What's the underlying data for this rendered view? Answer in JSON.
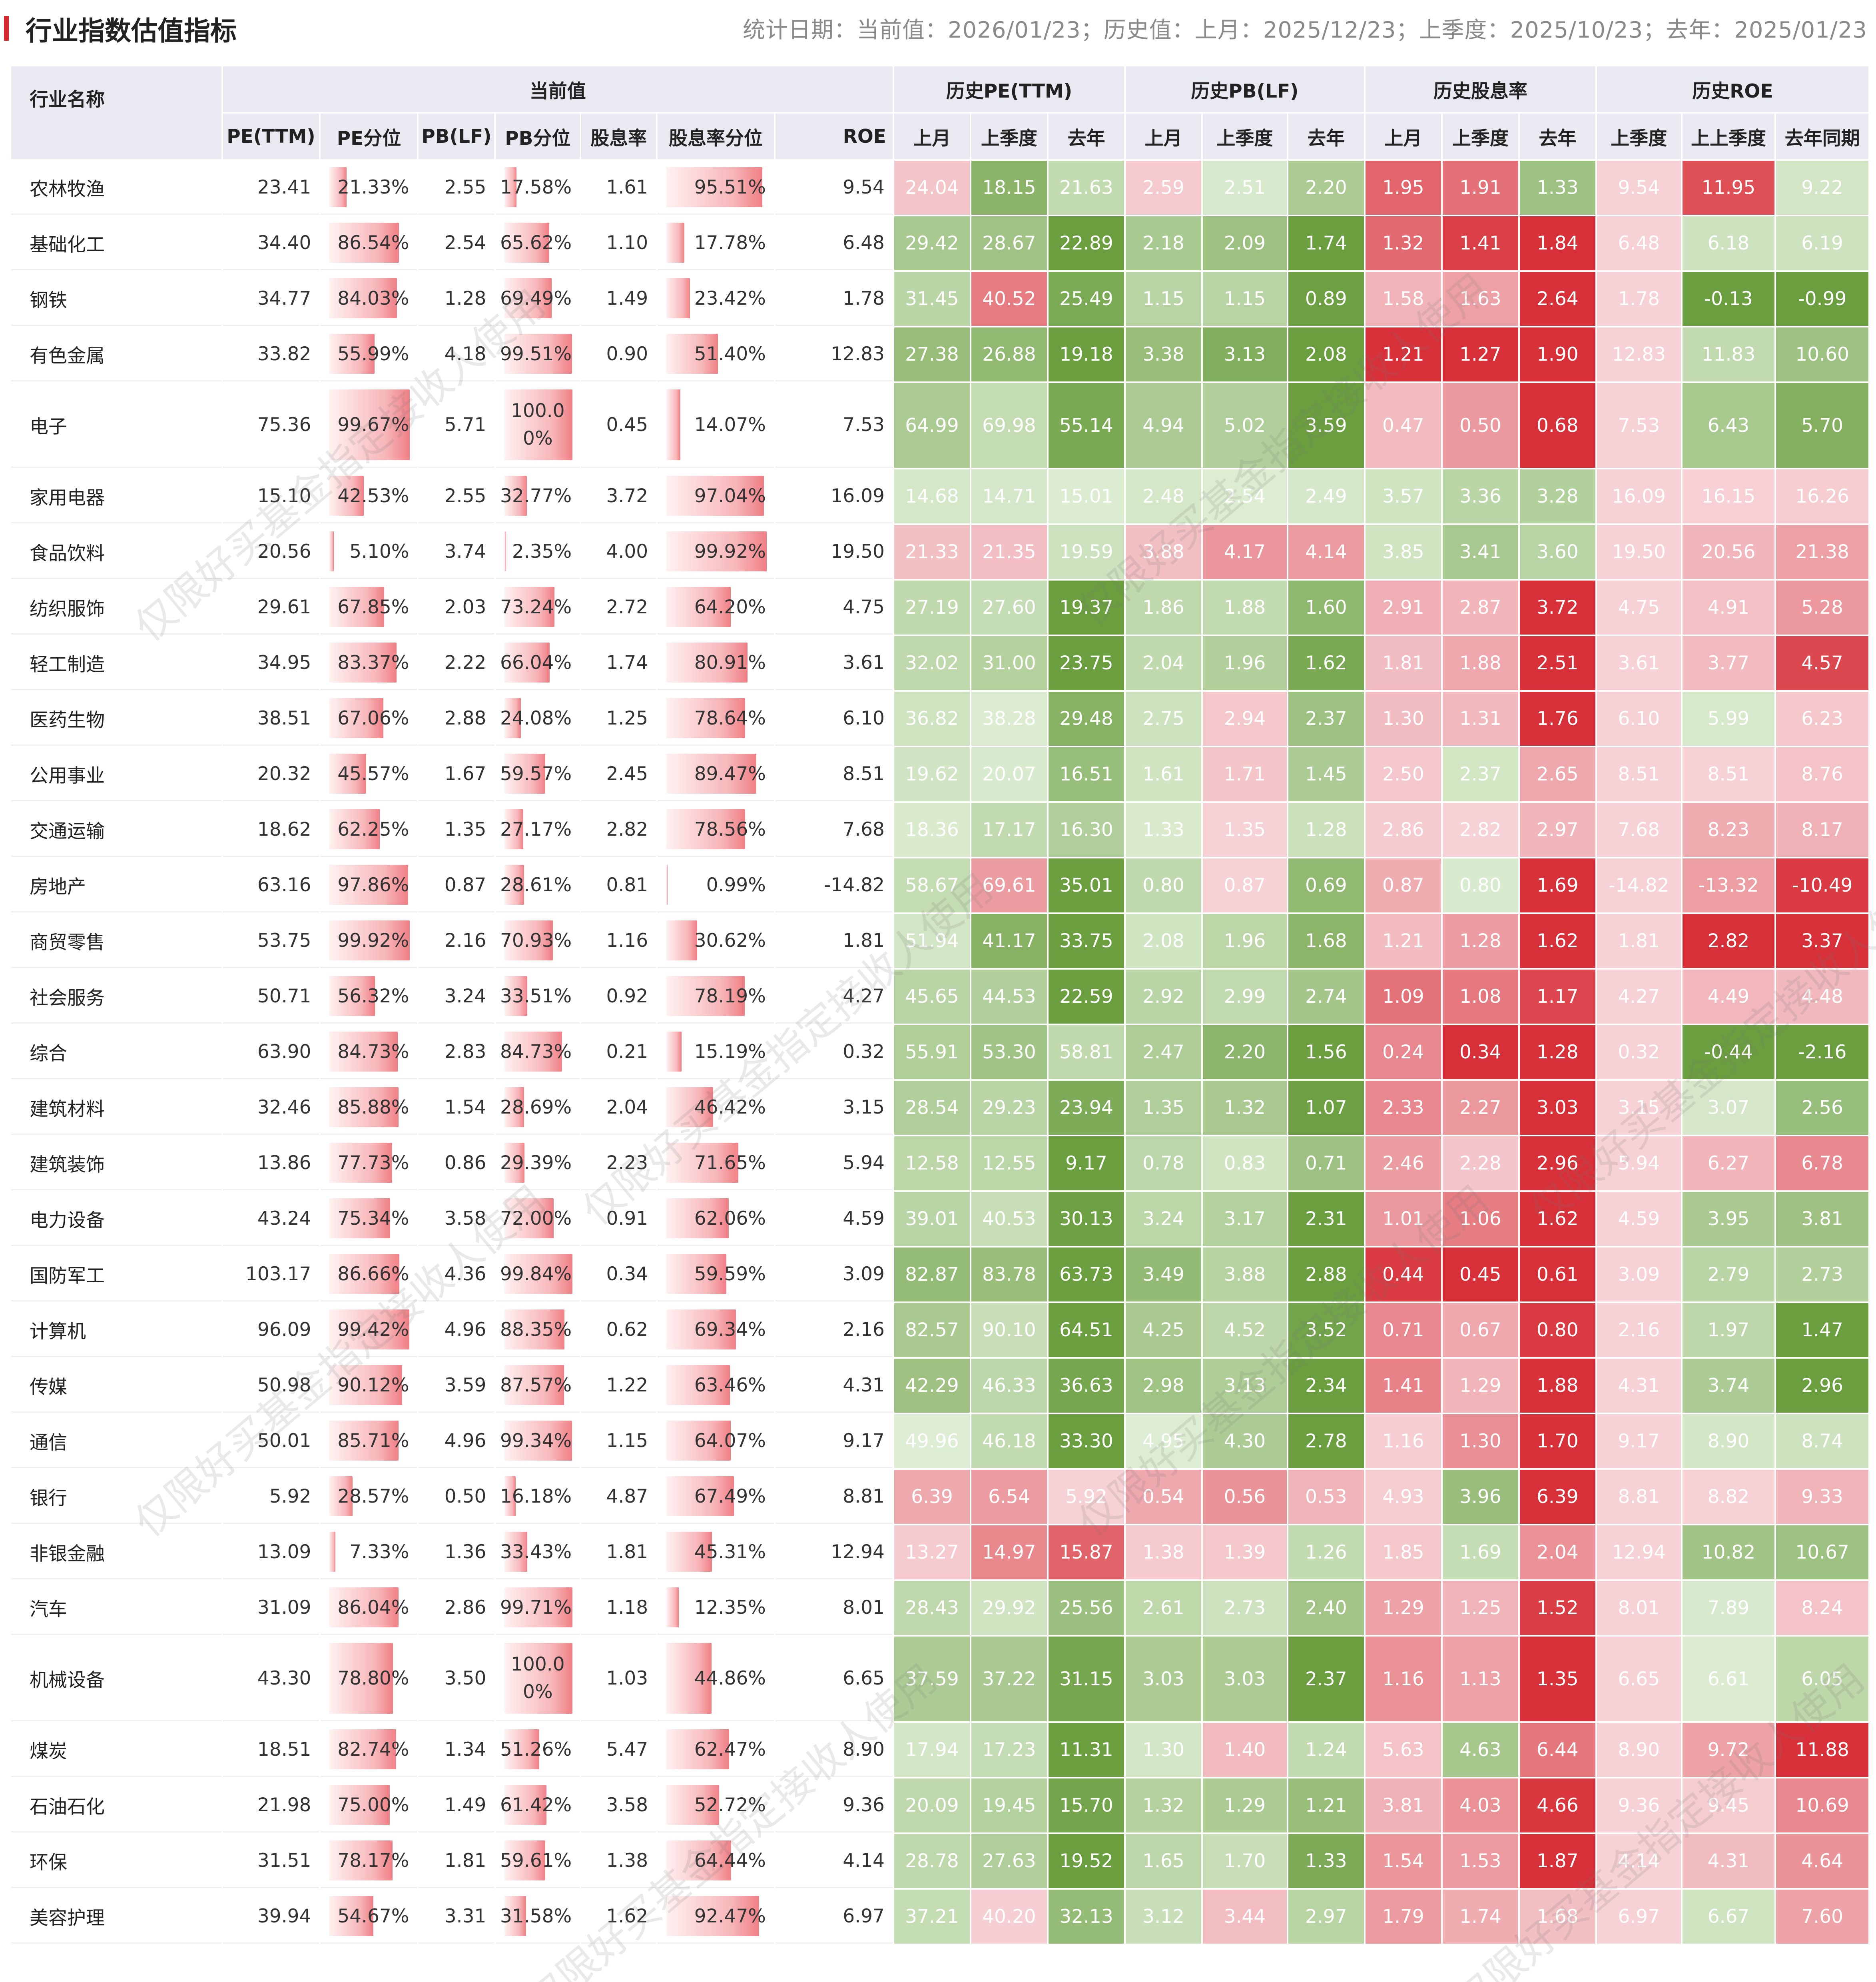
{
  "header": {
    "title": "行业指数估值指标",
    "stat_text": "统计日期：当前值：2026/01/23；历史值：上月：2025/12/23；上季度：2025/10/23；去年：2025/01/23"
  },
  "table": {
    "group_headers": {
      "name": "行业名称",
      "current": "当前值",
      "hist_pe": "历史PE(TTM)",
      "hist_pb": "历史PB(LF)",
      "hist_dy": "历史股息率",
      "hist_roe": "历史ROE"
    },
    "sub_headers": [
      "PE(TTM)",
      "PE分位",
      "PB(LF)",
      "PB分位",
      "股息率",
      "股息率分位",
      "ROE",
      "上月",
      "上季度",
      "去年",
      "上月",
      "上季度",
      "去年",
      "上月",
      "上季度",
      "去年",
      "上季度",
      "上上季度",
      "去年同期"
    ],
    "rows": [
      {
        "name": "农林牧渔",
        "pe": "23.41",
        "pe_pct": "21.33%",
        "pb": "2.55",
        "pb_pct": "17.58%",
        "dy": "1.61",
        "dy_pct": "95.51%",
        "roe": "9.54",
        "hist": [
          "24.04",
          "18.15",
          "21.63",
          "2.59",
          "2.51",
          "2.20",
          "1.95",
          "1.91",
          "1.33",
          "9.54",
          "11.95",
          "9.22"
        ]
      },
      {
        "name": "基础化工",
        "pe": "34.40",
        "pe_pct": "86.54%",
        "pb": "2.54",
        "pb_pct": "65.62%",
        "dy": "1.10",
        "dy_pct": "17.78%",
        "roe": "6.48",
        "hist": [
          "29.42",
          "28.67",
          "22.89",
          "2.18",
          "2.09",
          "1.74",
          "1.32",
          "1.41",
          "1.84",
          "6.48",
          "6.18",
          "6.19"
        ]
      },
      {
        "name": "钢铁",
        "pe": "34.77",
        "pe_pct": "84.03%",
        "pb": "1.28",
        "pb_pct": "69.49%",
        "dy": "1.49",
        "dy_pct": "23.42%",
        "roe": "1.78",
        "hist": [
          "31.45",
          "40.52",
          "25.49",
          "1.15",
          "1.15",
          "0.89",
          "1.58",
          "1.63",
          "2.64",
          "1.78",
          "-0.13",
          "-0.99"
        ]
      },
      {
        "name": "有色金属",
        "pe": "33.82",
        "pe_pct": "55.99%",
        "pb": "4.18",
        "pb_pct": "99.51%",
        "dy": "0.90",
        "dy_pct": "51.40%",
        "roe": "12.83",
        "hist": [
          "27.38",
          "26.88",
          "19.18",
          "3.38",
          "3.13",
          "2.08",
          "1.21",
          "1.27",
          "1.90",
          "12.83",
          "11.83",
          "10.60"
        ]
      },
      {
        "name": "电子",
        "pe": "75.36",
        "pe_pct": "99.67%",
        "pb": "5.71",
        "pb_pct": "100.00%",
        "pb_pct_l1": "100.0",
        "pb_pct_l2": "0%",
        "dy": "0.45",
        "dy_pct": "14.07%",
        "roe": "7.53",
        "hist": [
          "64.99",
          "69.98",
          "55.14",
          "4.94",
          "5.02",
          "3.59",
          "0.47",
          "0.50",
          "0.68",
          "7.53",
          "6.43",
          "5.70"
        ]
      },
      {
        "name": "家用电器",
        "pe": "15.10",
        "pe_pct": "42.53%",
        "pb": "2.55",
        "pb_pct": "32.77%",
        "dy": "3.72",
        "dy_pct": "97.04%",
        "roe": "16.09",
        "hist": [
          "14.68",
          "14.71",
          "15.01",
          "2.48",
          "2.54",
          "2.49",
          "3.57",
          "3.36",
          "3.28",
          "16.09",
          "16.15",
          "16.26"
        ]
      },
      {
        "name": "食品饮料",
        "pe": "20.56",
        "pe_pct": "5.10%",
        "pb": "3.74",
        "pb_pct": "2.35%",
        "dy": "4.00",
        "dy_pct": "99.92%",
        "roe": "19.50",
        "hist": [
          "21.33",
          "21.35",
          "19.59",
          "3.88",
          "4.17",
          "4.14",
          "3.85",
          "3.41",
          "3.60",
          "19.50",
          "20.56",
          "21.38"
        ]
      },
      {
        "name": "纺织服饰",
        "pe": "29.61",
        "pe_pct": "67.85%",
        "pb": "2.03",
        "pb_pct": "73.24%",
        "dy": "2.72",
        "dy_pct": "64.20%",
        "roe": "4.75",
        "hist": [
          "27.19",
          "27.60",
          "19.37",
          "1.86",
          "1.88",
          "1.60",
          "2.91",
          "2.87",
          "3.72",
          "4.75",
          "4.91",
          "5.28"
        ]
      },
      {
        "name": "轻工制造",
        "pe": "34.95",
        "pe_pct": "83.37%",
        "pb": "2.22",
        "pb_pct": "66.04%",
        "dy": "1.74",
        "dy_pct": "80.91%",
        "roe": "3.61",
        "hist": [
          "32.02",
          "31.00",
          "23.75",
          "2.04",
          "1.96",
          "1.62",
          "1.81",
          "1.88",
          "2.51",
          "3.61",
          "3.77",
          "4.57"
        ]
      },
      {
        "name": "医药生物",
        "pe": "38.51",
        "pe_pct": "67.06%",
        "pb": "2.88",
        "pb_pct": "24.08%",
        "dy": "1.25",
        "dy_pct": "78.64%",
        "roe": "6.10",
        "hist": [
          "36.82",
          "38.28",
          "29.48",
          "2.75",
          "2.94",
          "2.37",
          "1.30",
          "1.31",
          "1.76",
          "6.10",
          "5.99",
          "6.23"
        ]
      },
      {
        "name": "公用事业",
        "pe": "20.32",
        "pe_pct": "45.57%",
        "pb": "1.67",
        "pb_pct": "59.57%",
        "dy": "2.45",
        "dy_pct": "89.47%",
        "roe": "8.51",
        "hist": [
          "19.62",
          "20.07",
          "16.51",
          "1.61",
          "1.71",
          "1.45",
          "2.50",
          "2.37",
          "2.65",
          "8.51",
          "8.51",
          "8.76"
        ]
      },
      {
        "name": "交通运输",
        "pe": "18.62",
        "pe_pct": "62.25%",
        "pb": "1.35",
        "pb_pct": "27.17%",
        "dy": "2.82",
        "dy_pct": "78.56%",
        "roe": "7.68",
        "hist": [
          "18.36",
          "17.17",
          "16.30",
          "1.33",
          "1.35",
          "1.28",
          "2.86",
          "2.82",
          "2.97",
          "7.68",
          "8.23",
          "8.17"
        ]
      },
      {
        "name": "房地产",
        "pe": "63.16",
        "pe_pct": "97.86%",
        "pb": "0.87",
        "pb_pct": "28.61%",
        "dy": "0.81",
        "dy_pct": "0.99%",
        "roe": "-14.82",
        "hist": [
          "58.67",
          "69.61",
          "35.01",
          "0.80",
          "0.87",
          "0.69",
          "0.87",
          "0.80",
          "1.69",
          "-14.82",
          "-13.32",
          "-10.49"
        ]
      },
      {
        "name": "商贸零售",
        "pe": "53.75",
        "pe_pct": "99.92%",
        "pb": "2.16",
        "pb_pct": "70.93%",
        "dy": "1.16",
        "dy_pct": "30.62%",
        "roe": "1.81",
        "hist": [
          "51.94",
          "41.17",
          "33.75",
          "2.08",
          "1.96",
          "1.68",
          "1.21",
          "1.28",
          "1.62",
          "1.81",
          "2.82",
          "3.37"
        ]
      },
      {
        "name": "社会服务",
        "pe": "50.71",
        "pe_pct": "56.32%",
        "pb": "3.24",
        "pb_pct": "33.51%",
        "dy": "0.92",
        "dy_pct": "78.19%",
        "roe": "4.27",
        "hist": [
          "45.65",
          "44.53",
          "22.59",
          "2.92",
          "2.99",
          "2.74",
          "1.09",
          "1.08",
          "1.17",
          "4.27",
          "4.49",
          "4.48"
        ]
      },
      {
        "name": "综合",
        "pe": "63.90",
        "pe_pct": "84.73%",
        "pb": "2.83",
        "pb_pct": "84.73%",
        "dy": "0.21",
        "dy_pct": "15.19%",
        "roe": "0.32",
        "hist": [
          "55.91",
          "53.30",
          "58.81",
          "2.47",
          "2.20",
          "1.56",
          "0.24",
          "0.34",
          "1.28",
          "0.32",
          "-0.44",
          "-2.16"
        ]
      },
      {
        "name": "建筑材料",
        "pe": "32.46",
        "pe_pct": "85.88%",
        "pb": "1.54",
        "pb_pct": "28.69%",
        "dy": "2.04",
        "dy_pct": "46.42%",
        "roe": "3.15",
        "hist": [
          "28.54",
          "29.23",
          "23.94",
          "1.35",
          "1.32",
          "1.07",
          "2.33",
          "2.27",
          "3.03",
          "3.15",
          "3.07",
          "2.56"
        ]
      },
      {
        "name": "建筑装饰",
        "pe": "13.86",
        "pe_pct": "77.73%",
        "pb": "0.86",
        "pb_pct": "29.39%",
        "dy": "2.23",
        "dy_pct": "71.65%",
        "roe": "5.94",
        "hist": [
          "12.58",
          "12.55",
          "9.17",
          "0.78",
          "0.83",
          "0.71",
          "2.46",
          "2.28",
          "2.96",
          "5.94",
          "6.27",
          "6.78"
        ]
      },
      {
        "name": "电力设备",
        "pe": "43.24",
        "pe_pct": "75.34%",
        "pb": "3.58",
        "pb_pct": "72.00%",
        "dy": "0.91",
        "dy_pct": "62.06%",
        "roe": "4.59",
        "hist": [
          "39.01",
          "40.53",
          "30.13",
          "3.24",
          "3.17",
          "2.31",
          "1.01",
          "1.06",
          "1.62",
          "4.59",
          "3.95",
          "3.81"
        ]
      },
      {
        "name": "国防军工",
        "pe": "103.17",
        "pe_pct": "86.66%",
        "pb": "4.36",
        "pb_pct": "99.84%",
        "dy": "0.34",
        "dy_pct": "59.59%",
        "roe": "3.09",
        "hist": [
          "82.87",
          "83.78",
          "63.73",
          "3.49",
          "3.88",
          "2.88",
          "0.44",
          "0.45",
          "0.61",
          "3.09",
          "2.79",
          "2.73"
        ]
      },
      {
        "name": "计算机",
        "pe": "96.09",
        "pe_pct": "99.42%",
        "pb": "4.96",
        "pb_pct": "88.35%",
        "dy": "0.62",
        "dy_pct": "69.34%",
        "roe": "2.16",
        "hist": [
          "82.57",
          "90.10",
          "64.51",
          "4.25",
          "4.52",
          "3.52",
          "0.71",
          "0.67",
          "0.80",
          "2.16",
          "1.97",
          "1.47"
        ]
      },
      {
        "name": "传媒",
        "pe": "50.98",
        "pe_pct": "90.12%",
        "pb": "3.59",
        "pb_pct": "87.57%",
        "dy": "1.22",
        "dy_pct": "63.46%",
        "roe": "4.31",
        "hist": [
          "42.29",
          "46.33",
          "36.63",
          "2.98",
          "3.13",
          "2.34",
          "1.41",
          "1.29",
          "1.88",
          "4.31",
          "3.74",
          "2.96"
        ]
      },
      {
        "name": "通信",
        "pe": "50.01",
        "pe_pct": "85.71%",
        "pb": "4.96",
        "pb_pct": "99.34%",
        "dy": "1.15",
        "dy_pct": "64.07%",
        "roe": "9.17",
        "hist": [
          "49.96",
          "46.18",
          "33.30",
          "4.95",
          "4.30",
          "2.78",
          "1.16",
          "1.30",
          "1.70",
          "9.17",
          "8.90",
          "8.74"
        ]
      },
      {
        "name": "银行",
        "pe": "5.92",
        "pe_pct": "28.57%",
        "pb": "0.50",
        "pb_pct": "16.18%",
        "dy": "4.87",
        "dy_pct": "67.49%",
        "roe": "8.81",
        "hist": [
          "6.39",
          "6.54",
          "5.92",
          "0.54",
          "0.56",
          "0.53",
          "4.93",
          "3.96",
          "6.39",
          "8.81",
          "8.82",
          "9.33"
        ]
      },
      {
        "name": "非银金融",
        "pe": "13.09",
        "pe_pct": "7.33%",
        "pb": "1.36",
        "pb_pct": "33.43%",
        "dy": "1.81",
        "dy_pct": "45.31%",
        "roe": "12.94",
        "hist": [
          "13.27",
          "14.97",
          "15.87",
          "1.38",
          "1.39",
          "1.26",
          "1.85",
          "1.69",
          "2.04",
          "12.94",
          "10.82",
          "10.67"
        ]
      },
      {
        "name": "汽车",
        "pe": "31.09",
        "pe_pct": "86.04%",
        "pb": "2.86",
        "pb_pct": "99.71%",
        "dy": "1.18",
        "dy_pct": "12.35%",
        "roe": "8.01",
        "hist": [
          "28.43",
          "29.92",
          "25.56",
          "2.61",
          "2.73",
          "2.40",
          "1.29",
          "1.25",
          "1.52",
          "8.01",
          "7.89",
          "8.24"
        ]
      },
      {
        "name": "机械设备",
        "pe": "43.30",
        "pe_pct": "78.80%",
        "pb": "3.50",
        "pb_pct": "100.00%",
        "pb_pct_l1": "100.0",
        "pb_pct_l2": "0%",
        "dy": "1.03",
        "dy_pct": "44.86%",
        "roe": "6.65",
        "hist": [
          "37.59",
          "37.22",
          "31.15",
          "3.03",
          "3.03",
          "2.37",
          "1.16",
          "1.13",
          "1.35",
          "6.65",
          "6.61",
          "6.05"
        ]
      },
      {
        "name": "煤炭",
        "pe": "18.51",
        "pe_pct": "82.74%",
        "pb": "1.34",
        "pb_pct": "51.26%",
        "dy": "5.47",
        "dy_pct": "62.47%",
        "roe": "8.90",
        "hist": [
          "17.94",
          "17.23",
          "11.31",
          "1.30",
          "1.40",
          "1.24",
          "5.63",
          "4.63",
          "6.44",
          "8.90",
          "9.72",
          "11.88"
        ]
      },
      {
        "name": "石油石化",
        "pe": "21.98",
        "pe_pct": "75.00%",
        "pb": "1.49",
        "pb_pct": "61.42%",
        "dy": "3.58",
        "dy_pct": "52.72%",
        "roe": "9.36",
        "hist": [
          "20.09",
          "19.45",
          "15.70",
          "1.32",
          "1.29",
          "1.21",
          "3.81",
          "4.03",
          "4.66",
          "9.36",
          "9.45",
          "10.69"
        ]
      },
      {
        "name": "环保",
        "pe": "31.51",
        "pe_pct": "78.17%",
        "pb": "1.81",
        "pb_pct": "59.61%",
        "dy": "1.38",
        "dy_pct": "64.44%",
        "roe": "4.14",
        "hist": [
          "28.78",
          "27.63",
          "19.52",
          "1.65",
          "1.70",
          "1.33",
          "1.54",
          "1.53",
          "1.87",
          "4.14",
          "4.31",
          "4.64"
        ]
      },
      {
        "name": "美容护理",
        "pe": "39.94",
        "pe_pct": "54.67%",
        "pb": "3.31",
        "pb_pct": "31.58%",
        "dy": "1.62",
        "dy_pct": "92.47%",
        "roe": "6.97",
        "hist": [
          "37.21",
          "40.20",
          "32.13",
          "3.12",
          "3.44",
          "2.97",
          "1.79",
          "1.74",
          "1.68",
          "6.97",
          "6.67",
          "7.60"
        ]
      }
    ]
  },
  "colors": {
    "accent": "#d92b2b",
    "header_bg": "#e9e9f1",
    "high": "#d9363e",
    "low": "#6a9e3f",
    "neutral": "#e3efda",
    "watermark": "rgba(120,120,120,0.16)"
  },
  "watermark": {
    "text": "仅限好买基金指定接收人使用"
  }
}
